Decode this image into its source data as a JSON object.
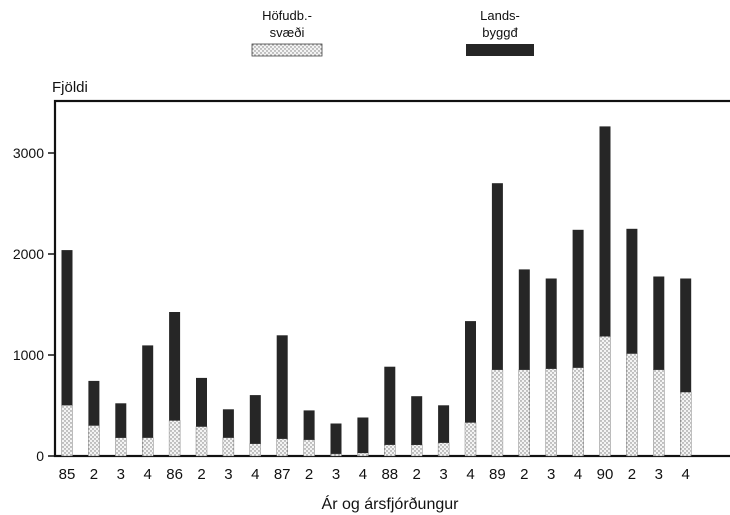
{
  "chart_data": {
    "type": "bar",
    "stacked": true,
    "title": "",
    "ylabel": "Fjöldi",
    "xlabel": "Ár og ársfjórðungur",
    "ylim": [
      0,
      3500
    ],
    "yticks": [
      0,
      1000,
      2000,
      3000
    ],
    "grid": false,
    "legend_position": "top-center",
    "categories": [
      "85",
      "2",
      "3",
      "4",
      "86",
      "2",
      "3",
      "4",
      "87",
      "2",
      "3",
      "4",
      "88",
      "2",
      "3",
      "4",
      "89",
      "2",
      "3",
      "4",
      "90",
      "2",
      "3",
      "4"
    ],
    "series": [
      {
        "name": "Höfudb.-\nsvæði",
        "legend_lines": [
          "Höfudb.-",
          "svæði"
        ],
        "pattern": "dotted",
        "color": "#e8e8e8",
        "values": [
          500,
          300,
          180,
          180,
          350,
          290,
          180,
          120,
          170,
          160,
          20,
          30,
          110,
          110,
          130,
          330,
          850,
          850,
          860,
          870,
          1180,
          1010,
          850,
          630
        ]
      },
      {
        "name": "Lands-\nbyggd",
        "legend_lines": [
          "Lands-",
          "byggđ"
        ],
        "pattern": "solid-dark",
        "color": "#262626",
        "values": [
          1530,
          440,
          340,
          910,
          1070,
          480,
          280,
          480,
          1020,
          290,
          300,
          350,
          770,
          480,
          370,
          1000,
          1840,
          990,
          890,
          1360,
          2070,
          1230,
          920,
          1120
        ]
      }
    ]
  }
}
